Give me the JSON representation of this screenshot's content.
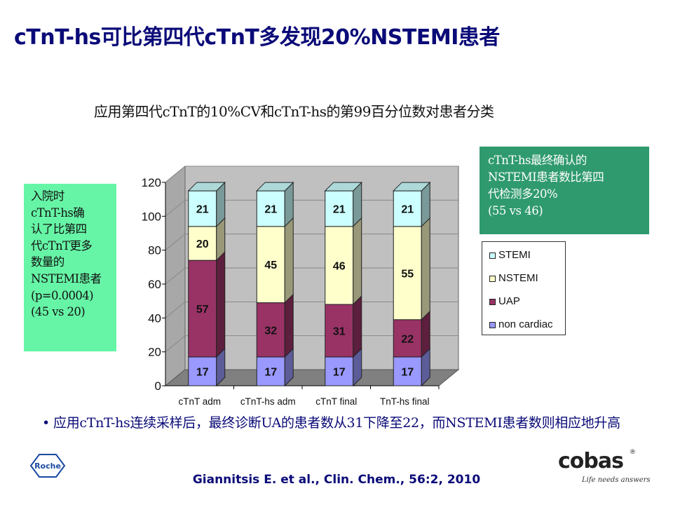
{
  "slide": {
    "title": "cTnT-hs可比第四代cTnT多发现20%NSTEMI患者",
    "subtitle": "应用第四代cTnT的10%CV和cTnT-hs的第99百分位数对患者分类",
    "left_note": [
      "入院时",
      "cTnT-hs确",
      "认了比第四",
      "代cTnT更多",
      "数量的",
      "NSTEMI患者",
      "(p=0.0004)",
      "(45 vs 20)"
    ],
    "right_note": [
      "cTnT-hs最终确认的",
      "NSTEMI患者数比第四",
      "代检测多20%",
      "(55 vs 46)"
    ],
    "bullet": "应用cTnT-hs连续采样后，最终诊断UA的患者数从31下降至22，而NSTEMI患者数则相应地升高",
    "citation": "Giannitsis E. et al., Clin. Chem., 56:2, 2010",
    "roche_logo_text": "Roche",
    "cobas_logo_text": "cobas",
    "cobas_registered": "®",
    "cobas_tagline": "Life needs answers"
  },
  "chart_data": {
    "type": "bar",
    "stacked": true,
    "three_d": true,
    "categories": [
      "cTnT adm",
      "cTnT-hs adm",
      "cTnT final",
      "TnT-hs final"
    ],
    "series": [
      {
        "name": "non cardiac",
        "values": [
          17,
          17,
          17,
          17
        ],
        "color": "#9999ff"
      },
      {
        "name": "UAP",
        "values": [
          57,
          32,
          31,
          22
        ],
        "color": "#993366"
      },
      {
        "name": "NSTEMI",
        "values": [
          20,
          45,
          46,
          55
        ],
        "color": "#ffffcc"
      },
      {
        "name": "STEMI",
        "values": [
          21,
          21,
          21,
          21
        ],
        "color": "#ccffff"
      }
    ],
    "legend_order": [
      "STEMI",
      "NSTEMI",
      "UAP",
      "non cardiac"
    ],
    "ylim": [
      0,
      120
    ],
    "yticks": [
      0,
      20,
      40,
      60,
      80,
      100,
      120
    ],
    "wall_color": "#c0c0c0",
    "floor_color": "#808080",
    "legend_position": "right"
  }
}
